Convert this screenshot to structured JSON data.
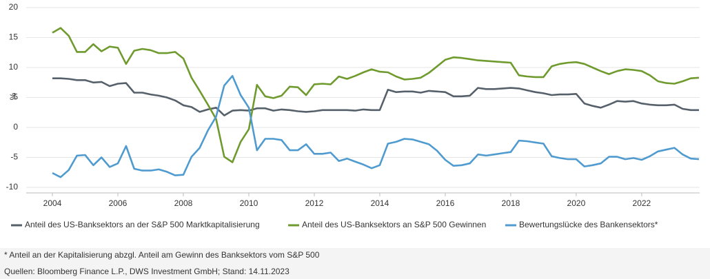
{
  "chart_data": {
    "type": "line",
    "ylabel": "%",
    "x": [
      2004,
      2004.25,
      2004.5,
      2004.75,
      2005,
      2005.25,
      2005.5,
      2005.75,
      2006,
      2006.25,
      2006.5,
      2006.75,
      2007,
      2007.25,
      2007.5,
      2007.75,
      2008,
      2008.25,
      2008.5,
      2008.75,
      2009,
      2009.25,
      2009.5,
      2009.75,
      2010,
      2010.25,
      2010.5,
      2010.75,
      2011,
      2011.25,
      2011.5,
      2011.75,
      2012,
      2012.25,
      2012.5,
      2012.75,
      2013,
      2013.25,
      2013.5,
      2013.75,
      2014,
      2014.25,
      2014.5,
      2014.75,
      2015,
      2015.25,
      2015.5,
      2015.75,
      2016,
      2016.25,
      2016.5,
      2016.75,
      2017,
      2017.25,
      2017.5,
      2017.75,
      2018,
      2018.25,
      2018.5,
      2018.75,
      2019,
      2019.25,
      2019.5,
      2019.75,
      2020,
      2020.25,
      2020.5,
      2020.75,
      2021,
      2021.25,
      2021.5,
      2021.75,
      2022,
      2022.25,
      2022.5,
      2022.75,
      2023,
      2023.25,
      2023.5,
      2023.75
    ],
    "series": [
      {
        "name": "Anteil des US-Banksektors an der S&P 500 Marktkapitalisierung",
        "color": "#56606a",
        "values": [
          8.2,
          8.2,
          8.1,
          7.9,
          7.9,
          7.5,
          7.6,
          6.9,
          7.3,
          7.4,
          5.8,
          5.8,
          5.5,
          5.3,
          5.0,
          4.5,
          3.7,
          3.4,
          2.6,
          3.0,
          3.3,
          2.0,
          2.8,
          2.9,
          2.8,
          3.2,
          3.2,
          2.8,
          3.0,
          2.9,
          2.7,
          2.6,
          2.7,
          2.9,
          2.9,
          2.9,
          2.9,
          2.8,
          3.0,
          2.9,
          2.9,
          6.3,
          5.9,
          6.0,
          6.0,
          5.8,
          6.1,
          6.0,
          5.9,
          5.2,
          5.2,
          5.3,
          6.6,
          6.4,
          6.4,
          6.5,
          6.6,
          6.5,
          6.2,
          5.9,
          5.7,
          5.4,
          5.5,
          5.5,
          5.6,
          4.0,
          3.6,
          3.3,
          3.8,
          4.4,
          4.3,
          4.4,
          4.0,
          3.8,
          3.7,
          3.7,
          3.8,
          3.1,
          2.9,
          2.9
        ]
      },
      {
        "name": "Anteil des US-Banksektors an S&P 500 Gewinnen",
        "color": "#6f9a2e",
        "values": [
          15.8,
          16.6,
          15.3,
          12.6,
          12.6,
          13.9,
          12.7,
          13.5,
          13.3,
          10.6,
          12.8,
          13.1,
          12.9,
          12.4,
          12.4,
          12.6,
          11.5,
          8.3,
          6.1,
          3.8,
          1.4,
          -4.9,
          -5.8,
          -2.4,
          -0.3,
          7.1,
          5.2,
          4.9,
          5.3,
          6.8,
          6.7,
          5.4,
          7.2,
          7.3,
          7.2,
          8.5,
          8.1,
          8.6,
          9.2,
          9.7,
          9.3,
          9.2,
          8.5,
          8.0,
          8.1,
          8.3,
          9.1,
          10.2,
          11.3,
          11.7,
          11.6,
          11.4,
          11.2,
          11.1,
          11.0,
          10.9,
          10.8,
          8.7,
          8.5,
          8.4,
          8.4,
          10.2,
          10.6,
          10.8,
          10.9,
          10.6,
          10.0,
          9.4,
          8.9,
          9.4,
          9.7,
          9.6,
          9.4,
          8.7,
          7.7,
          7.4,
          7.3,
          7.7,
          8.2,
          8.3
        ]
      },
      {
        "name": "Bewertungslücke des Bankensektors*",
        "color": "#4f9bd0",
        "values": [
          -7.6,
          -8.3,
          -7.1,
          -4.7,
          -4.6,
          -6.3,
          -5.0,
          -6.6,
          -6.0,
          -3.1,
          -6.9,
          -7.2,
          -7.2,
          -7.0,
          -7.4,
          -8.0,
          -7.9,
          -4.9,
          -3.4,
          -0.5,
          1.8,
          7.0,
          8.6,
          5.4,
          3.3,
          -3.8,
          -1.9,
          -1.9,
          -2.1,
          -3.8,
          -3.8,
          -2.8,
          -4.4,
          -4.4,
          -4.2,
          -5.6,
          -5.2,
          -5.7,
          -6.2,
          -6.8,
          -6.3,
          -2.7,
          -2.4,
          -1.9,
          -2.0,
          -2.4,
          -2.8,
          -3.9,
          -5.4,
          -6.4,
          -6.3,
          -6.0,
          -4.5,
          -4.7,
          -4.5,
          -4.3,
          -4.1,
          -2.2,
          -2.3,
          -2.5,
          -2.7,
          -4.8,
          -5.1,
          -5.3,
          -5.3,
          -6.5,
          -6.3,
          -6.0,
          -4.9,
          -4.9,
          -5.3,
          -5.1,
          -5.4,
          -4.8,
          -4.0,
          -3.7,
          -3.4,
          -4.5,
          -5.2,
          -5.3
        ]
      }
    ],
    "xlim": [
      2004,
      2023.75
    ],
    "xticks": [
      2004,
      2006,
      2008,
      2010,
      2012,
      2014,
      2016,
      2018,
      2020,
      2022
    ],
    "ylim": [
      -10,
      20
    ],
    "yticks": [
      -10,
      -5,
      0,
      5,
      10,
      15,
      20
    ],
    "grid": true,
    "footnote": "* Anteil an der Kapitalisierung abzgl. Anteil am Gewinn des Banksektors vom S&P 500",
    "source": "Quellen: Bloomberg Finance L.P., DWS Investment GmbH; Stand: 14.11.2023"
  }
}
